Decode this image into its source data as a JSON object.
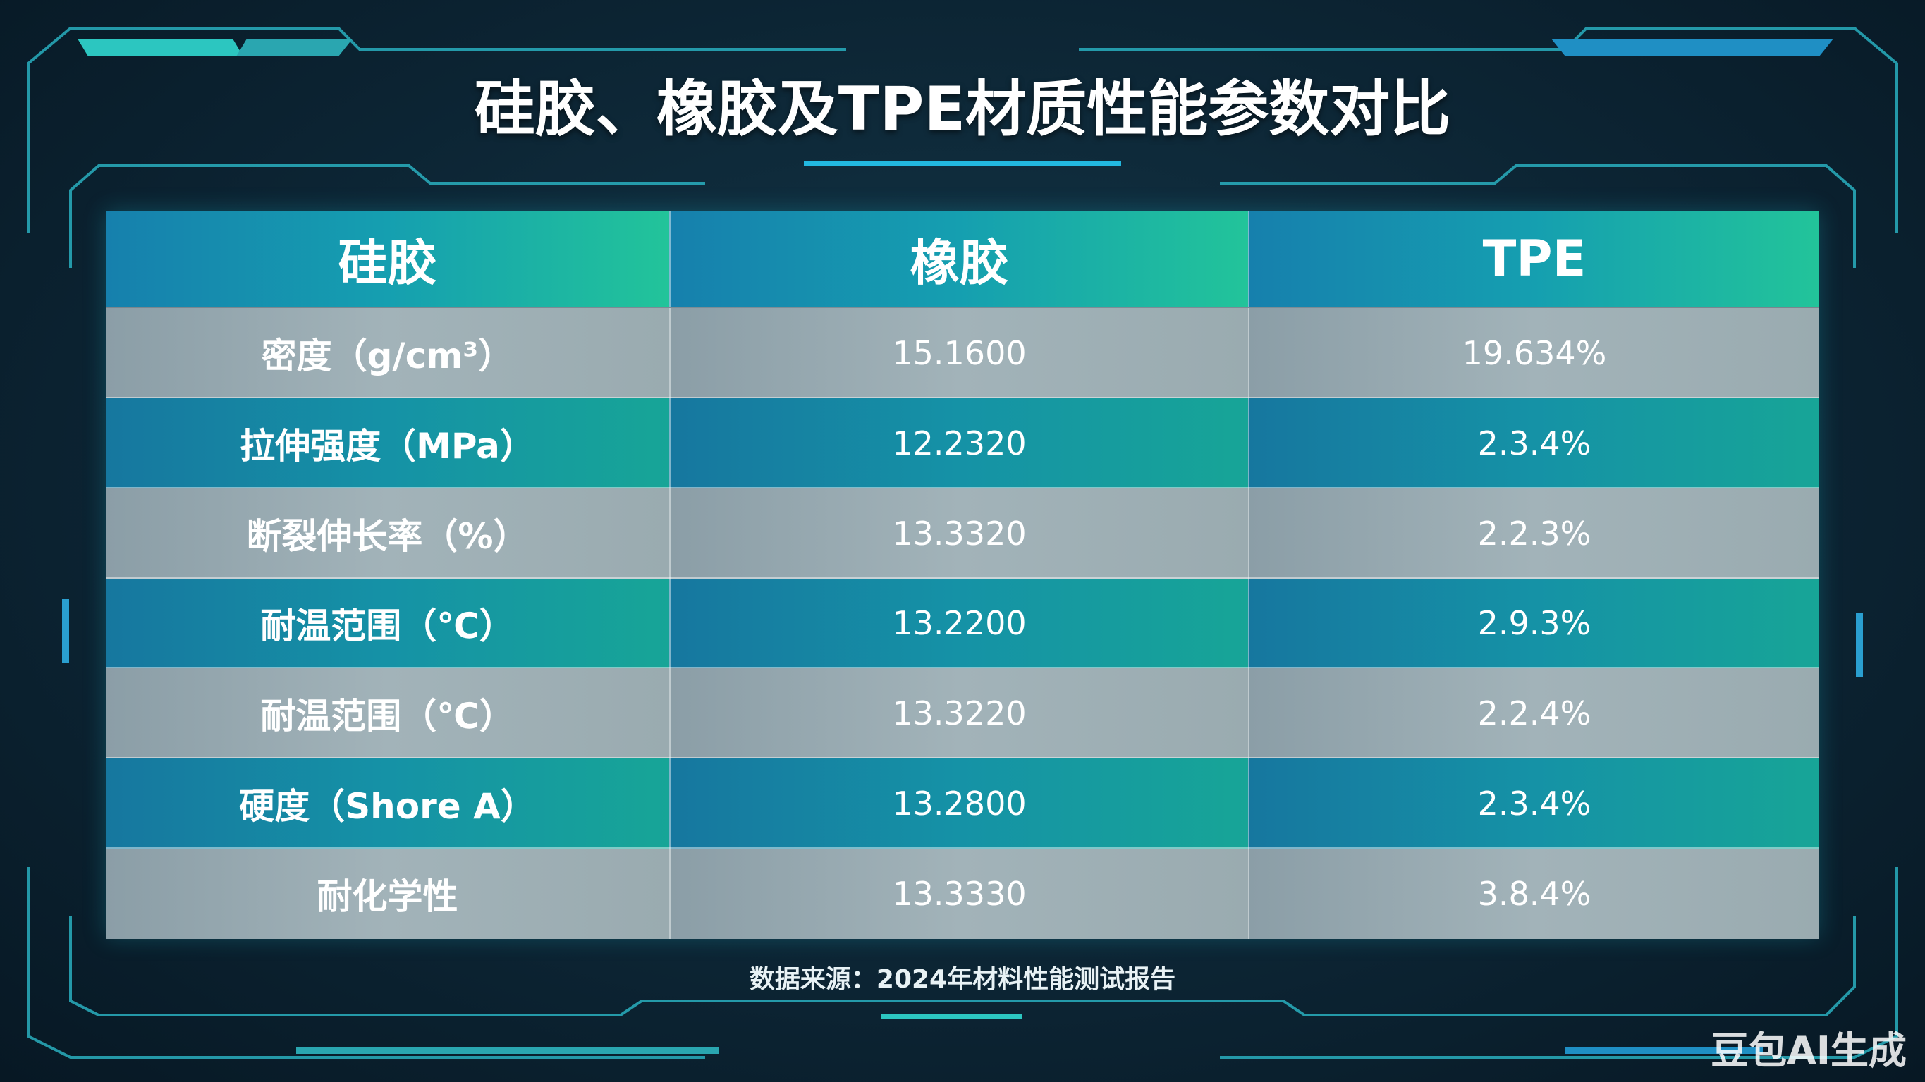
{
  "title": "硅胶、橡胶及TPE材质性能参数对比",
  "table": {
    "header": [
      "硅胶",
      "橡胶",
      "TPE"
    ],
    "rows": [
      [
        "密度（g/cm³）",
        "15.1600",
        "19.634%"
      ],
      [
        "拉伸强度（MPa）",
        "12.2320",
        "2.3.4%"
      ],
      [
        "断裂伸长率（%）",
        "13.3320",
        "2.2.3%"
      ],
      [
        "耐温范围（℃）",
        "13.2200",
        "2.9.3%"
      ],
      [
        "耐温范围（℃）",
        "13.3220",
        "2.2.4%"
      ],
      [
        "硬度（Shore A）",
        "13.2800",
        "2.3.4%"
      ],
      [
        "耐化学性",
        "13.3330",
        "3.8.4%"
      ]
    ]
  },
  "footnote": "数据来源：2024年材料性能测试报告",
  "watermark": "豆包AI生成"
}
